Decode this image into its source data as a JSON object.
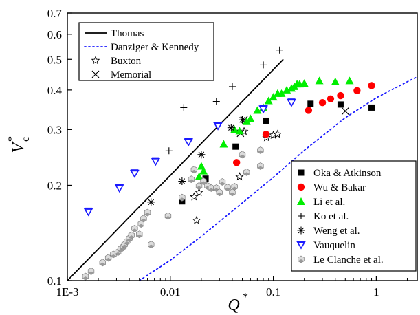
{
  "chart_data": {
    "type": "scatter",
    "title": "",
    "xlabel": "Q",
    "xlabel_superscript": "*",
    "ylabel": "V",
    "ylabel_superscript": "*",
    "ylabel_subscript": "c",
    "xscale": "log",
    "yscale": "log",
    "xlim": [
      0.001,
      2.5
    ],
    "ylim": [
      0.1,
      0.7
    ],
    "x_ticks": [
      {
        "value": 0.001,
        "label": "1E-3"
      },
      {
        "value": 0.01,
        "label": "0.01"
      },
      {
        "value": 0.1,
        "label": "0.1"
      },
      {
        "value": 1,
        "label": "1"
      }
    ],
    "y_ticks": [
      {
        "value": 0.1,
        "label": "0.1"
      },
      {
        "value": 0.2,
        "label": "0.2"
      },
      {
        "value": 0.3,
        "label": "0.3"
      },
      {
        "value": 0.4,
        "label": "0.4"
      },
      {
        "value": 0.5,
        "label": "0.5"
      },
      {
        "value": 0.6,
        "label": "0.6"
      },
      {
        "value": 0.7,
        "label": "0.7"
      }
    ],
    "grid": false,
    "legends": [
      {
        "placement": "top-left",
        "entries": [
          {
            "name": "Thomas",
            "kind": "line",
            "style": "solid",
            "color": "#000000"
          },
          {
            "name": "Danziger & Kennedy",
            "kind": "line",
            "style": "dotted",
            "color": "#1a1aff"
          },
          {
            "name": "Buxton",
            "kind": "marker",
            "marker": "star",
            "color": "#000000"
          },
          {
            "name": "Memorial",
            "kind": "marker",
            "marker": "x",
            "color": "#000000"
          }
        ]
      },
      {
        "placement": "bottom-right",
        "entries": [
          {
            "name": "Oka & Atkinson",
            "kind": "marker",
            "marker": "square",
            "color": "#000000"
          },
          {
            "name": "Wu & Bakar",
            "kind": "marker",
            "marker": "circle",
            "color": "#ff0000"
          },
          {
            "name": "Li et al.",
            "kind": "marker",
            "marker": "triangle",
            "color": "#00ee00"
          },
          {
            "name": "Ko et al.",
            "kind": "marker",
            "marker": "plus",
            "color": "#000000"
          },
          {
            "name": "Weng et al.",
            "kind": "marker",
            "marker": "asterisk",
            "color": "#000000"
          },
          {
            "name": "Vauquelin",
            "kind": "marker",
            "marker": "triangle-down",
            "color": "#1a1aff"
          },
          {
            "name": "Le Clanche et al.",
            "kind": "marker",
            "marker": "hexagon",
            "color": "#9a9a9a"
          }
        ]
      }
    ],
    "lines": [
      {
        "name": "Thomas",
        "style": "solid",
        "color": "#000000",
        "x": [
          0.001,
          0.00215,
          0.00464,
          0.01,
          0.0215,
          0.0464,
          0.1,
          0.125
        ],
        "y": [
          0.1,
          0.129,
          0.167,
          0.215,
          0.278,
          0.359,
          0.464,
          0.5
        ]
      },
      {
        "name": "Danziger & Kennedy",
        "style": "dotted",
        "color": "#1a1aff",
        "x": [
          0.005,
          0.01,
          0.02,
          0.05,
          0.1,
          0.2,
          0.5,
          1,
          2,
          2.5
        ],
        "y": [
          0.1,
          0.116,
          0.138,
          0.176,
          0.212,
          0.258,
          0.327,
          0.378,
          0.425,
          0.44
        ]
      }
    ],
    "series": [
      {
        "name": "Buxton",
        "marker": "star",
        "x": [
          0.018,
          0.017,
          0.019,
          0.047,
          0.052,
          0.086,
          0.1,
          0.11
        ],
        "y": [
          0.155,
          0.184,
          0.19,
          0.213,
          0.296,
          0.283,
          0.288,
          0.29
        ]
      },
      {
        "name": "Memorial",
        "marker": "x",
        "x": [
          0.052,
          0.048,
          0.5
        ],
        "y": [
          0.322,
          0.292,
          0.343
        ]
      },
      {
        "name": "Oka & Atkinson",
        "marker": "square",
        "x": [
          0.013,
          0.022,
          0.043,
          0.085,
          0.23,
          0.45,
          0.9
        ],
        "y": [
          0.178,
          0.21,
          0.265,
          0.32,
          0.362,
          0.36,
          0.352
        ]
      },
      {
        "name": "Wu & Bakar",
        "marker": "circle",
        "x": [
          0.044,
          0.085,
          0.22,
          0.3,
          0.36,
          0.45,
          0.65,
          0.9
        ],
        "y": [
          0.236,
          0.29,
          0.345,
          0.365,
          0.375,
          0.384,
          0.398,
          0.413
        ]
      },
      {
        "name": "Li et al.",
        "marker": "triangle",
        "x": [
          0.019,
          0.021,
          0.02,
          0.033,
          0.042,
          0.047,
          0.055,
          0.06,
          0.07,
          0.08,
          0.09,
          0.1,
          0.11,
          0.12,
          0.135,
          0.15,
          0.16,
          0.17,
          0.18,
          0.2,
          0.28,
          0.4,
          0.55
        ],
        "y": [
          0.213,
          0.222,
          0.23,
          0.27,
          0.3,
          0.297,
          0.318,
          0.325,
          0.345,
          0.352,
          0.37,
          0.38,
          0.39,
          0.39,
          0.4,
          0.405,
          0.41,
          0.418,
          0.418,
          0.42,
          0.428,
          0.425,
          0.428
        ]
      },
      {
        "name": "Ko et al.",
        "marker": "plus",
        "x": [
          0.0135,
          0.0097,
          0.028,
          0.04,
          0.08,
          0.115
        ],
        "y": [
          0.352,
          0.257,
          0.368,
          0.41,
          0.48,
          0.535
        ]
      },
      {
        "name": "Weng et al.",
        "marker": "asterisk",
        "x": [
          0.0065,
          0.013,
          0.02,
          0.039,
          0.05
        ],
        "y": [
          0.177,
          0.206,
          0.25,
          0.304,
          0.322
        ]
      },
      {
        "name": "Vauquelin",
        "marker": "triangle-down",
        "x": [
          0.0016,
          0.0032,
          0.0045,
          0.0072,
          0.015,
          0.029,
          0.08,
          0.15
        ],
        "y": [
          0.165,
          0.196,
          0.218,
          0.238,
          0.274,
          0.308,
          0.348,
          0.365
        ]
      },
      {
        "name": "Le Clanche et al.",
        "marker": "hexagon",
        "x": [
          0.0015,
          0.0017,
          0.0022,
          0.0025,
          0.0028,
          0.0031,
          0.0033,
          0.0035,
          0.0036,
          0.0038,
          0.004,
          0.0042,
          0.0045,
          0.005,
          0.0052,
          0.0055,
          0.006,
          0.0065,
          0.0095,
          0.013,
          0.016,
          0.017,
          0.019,
          0.021,
          0.023,
          0.025,
          0.028,
          0.03,
          0.032,
          0.036,
          0.04,
          0.042,
          0.05,
          0.055,
          0.075,
          0.075
        ],
        "y": [
          0.103,
          0.107,
          0.114,
          0.118,
          0.121,
          0.123,
          0.126,
          0.128,
          0.13,
          0.133,
          0.136,
          0.139,
          0.146,
          0.14,
          0.151,
          0.157,
          0.164,
          0.13,
          0.16,
          0.183,
          0.209,
          0.224,
          0.199,
          0.206,
          0.199,
          0.196,
          0.196,
          0.19,
          0.205,
          0.197,
          0.19,
          0.198,
          0.25,
          0.22,
          0.23,
          0.258
        ]
      }
    ]
  }
}
